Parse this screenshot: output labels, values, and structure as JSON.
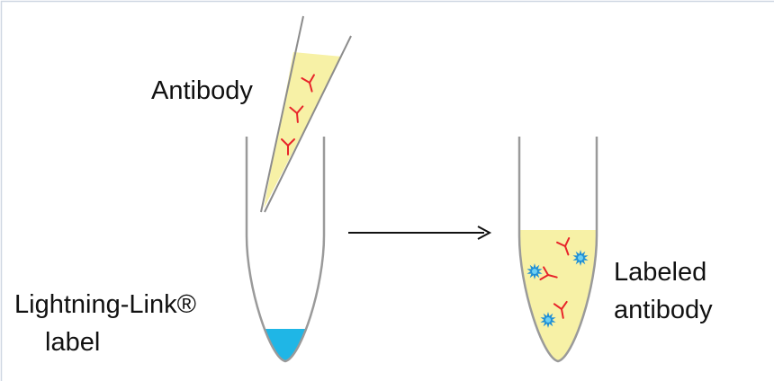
{
  "labels": {
    "antibody": "Antibody",
    "lightning_link_line1": "Lightning-Link®",
    "lightning_link_line2": "label",
    "labeled_line1": "Labeled",
    "labeled_line2": "antibody"
  },
  "colors": {
    "background": "#ffffff",
    "frame_border": "#cfd7e2",
    "tube_outline": "#9a9a9a",
    "pipette_outline": "#8c8c8c",
    "solution_yellow": "#f7f1a6",
    "label_liquid_blue": "#1fb6e6",
    "antibody_red": "#e8242a",
    "fluorophore_blue": "#1f8fd6",
    "arrow": "#111111"
  },
  "icons": {
    "antibody": "y-shaped-antibody-icon",
    "fluorophore": "starburst-fluorophore-icon"
  }
}
